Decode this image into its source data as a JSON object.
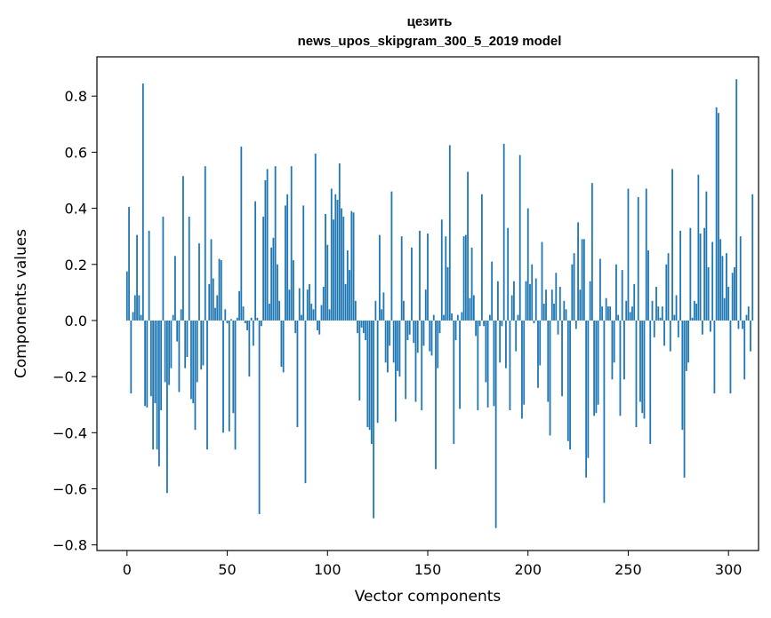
{
  "chart_data": {
    "type": "bar",
    "title": "цезить",
    "subtitle": "news_upos_skipgram_300_5_2019 model",
    "xlabel": "Vector components",
    "ylabel": "Components values",
    "xlim": [
      -15,
      315
    ],
    "ylim": [
      -0.82,
      0.94
    ],
    "xticks": [
      0,
      50,
      100,
      150,
      200,
      250,
      300
    ],
    "yticks": [
      -0.8,
      -0.6,
      -0.4,
      -0.2,
      0.0,
      0.2,
      0.4,
      0.6,
      0.8
    ],
    "xtick_labels": [
      "0",
      "50",
      "100",
      "150",
      "200",
      "250",
      "300"
    ],
    "ytick_labels": [
      "−0.8",
      "−0.6",
      "−0.4",
      "−0.2",
      "0.0",
      "0.2",
      "0.4",
      "0.6",
      "0.8"
    ],
    "bar_color": "#1f77b4",
    "values": [
      0.175,
      0.405,
      -0.26,
      0.03,
      0.09,
      0.305,
      0.09,
      0.02,
      0.845,
      -0.305,
      -0.31,
      0.32,
      -0.27,
      -0.46,
      -0.295,
      -0.46,
      -0.52,
      -0.32,
      0.37,
      -0.22,
      -0.615,
      -0.23,
      -0.17,
      0.02,
      0.23,
      -0.075,
      -0.255,
      0.04,
      0.515,
      -0.17,
      -0.13,
      0.37,
      -0.28,
      -0.295,
      -0.39,
      -0.22,
      0.275,
      -0.175,
      -0.16,
      0.55,
      -0.46,
      0.13,
      0.29,
      0.15,
      0.045,
      0.09,
      0.22,
      0.215,
      -0.4,
      0.04,
      -0.01,
      -0.395,
      0.005,
      -0.33,
      -0.46,
      0.01,
      0.105,
      0.62,
      0.05,
      -0.01,
      -0.035,
      -0.2,
      0.01,
      -0.09,
      0.425,
      0.01,
      -0.69,
      -0.02,
      0.37,
      0.5,
      0.54,
      0.06,
      0.26,
      0.295,
      0.55,
      0.2,
      0.07,
      -0.165,
      -0.185,
      0.41,
      0.45,
      0.11,
      0.55,
      0.215,
      -0.045,
      -0.38,
      0.115,
      0.02,
      0.41,
      -0.58,
      0.11,
      0.13,
      0.06,
      0.04,
      0.595,
      -0.035,
      -0.05,
      0.055,
      0.12,
      0.38,
      0.27,
      0.04,
      0.47,
      0.36,
      0.45,
      0.43,
      0.56,
      0.4,
      0.37,
      0.13,
      0.25,
      0.18,
      0.39,
      0.385,
      0.07,
      -0.045,
      -0.285,
      -0.025,
      -0.045,
      -0.07,
      -0.38,
      -0.39,
      -0.44,
      -0.705,
      0.07,
      -0.365,
      0.305,
      0.04,
      0.1,
      -0.15,
      -0.185,
      -0.09,
      0.46,
      -0.15,
      -0.36,
      -0.18,
      -0.2,
      0.3,
      0.07,
      -0.28,
      -0.07,
      -0.05,
      0.26,
      -0.08,
      -0.29,
      -0.115,
      0.32,
      -0.32,
      -0.09,
      0.11,
      0.31,
      -0.11,
      -0.125,
      0.02,
      -0.53,
      -0.17,
      -0.045,
      0.36,
      0.02,
      0.3,
      0.19,
      0.625,
      0.025,
      -0.44,
      -0.07,
      0.02,
      -0.315,
      0.03,
      0.3,
      0.305,
      0.53,
      0.08,
      0.26,
      0.09,
      -0.055,
      -0.32,
      -0.02,
      0.45,
      -0.02,
      -0.22,
      -0.31,
      0.02,
      0.21,
      -0.305,
      -0.74,
      0.14,
      -0.15,
      -0.02,
      0.63,
      -0.17,
      0.33,
      -0.32,
      0.09,
      0.14,
      -0.11,
      0.02,
      0.59,
      -0.35,
      -0.3,
      0.14,
      0.4,
      0.13,
      0.2,
      -0.01,
      0.15,
      -0.24,
      -0.16,
      0.28,
      0.06,
      0.11,
      -0.29,
      -0.41,
      0.11,
      0.06,
      0.17,
      -0.05,
      0.12,
      -0.27,
      0.07,
      0.04,
      -0.43,
      -0.46,
      0.2,
      0.24,
      -0.03,
      0.35,
      0.11,
      0.29,
      0.29,
      -0.56,
      -0.49,
      0.14,
      0.49,
      -0.34,
      -0.33,
      -0.3,
      0.22,
      0.05,
      -0.65,
      0.08,
      0.05,
      0.05,
      -0.21,
      -0.15,
      0.2,
      0.02,
      -0.34,
      0.18,
      -0.21,
      0.07,
      0.47,
      0.03,
      0.05,
      0.13,
      -0.38,
      0.44,
      -0.29,
      -0.33,
      -0.35,
      0.47,
      0.25,
      -0.44,
      0.07,
      -0.06,
      0.12,
      0.05,
      0.01,
      0.05,
      -0.09,
      0.2,
      0.24,
      -0.11,
      0.54,
      0.02,
      0.09,
      -0.06,
      0.32,
      -0.39,
      -0.56,
      -0.18,
      -0.15,
      0.33,
      0.01,
      0.07,
      0.06,
      0.52,
      0.31,
      -0.05,
      0.33,
      0.46,
      0.19,
      -0.04,
      0.28,
      -0.26,
      0.76,
      0.74,
      0.29,
      0.23,
      0.08,
      0.24,
      0.12,
      -0.26,
      0.17,
      0.19,
      0.86,
      -0.03,
      0.3,
      -0.03,
      -0.21,
      0.02,
      0.05,
      -0.11,
      0.45
    ]
  }
}
